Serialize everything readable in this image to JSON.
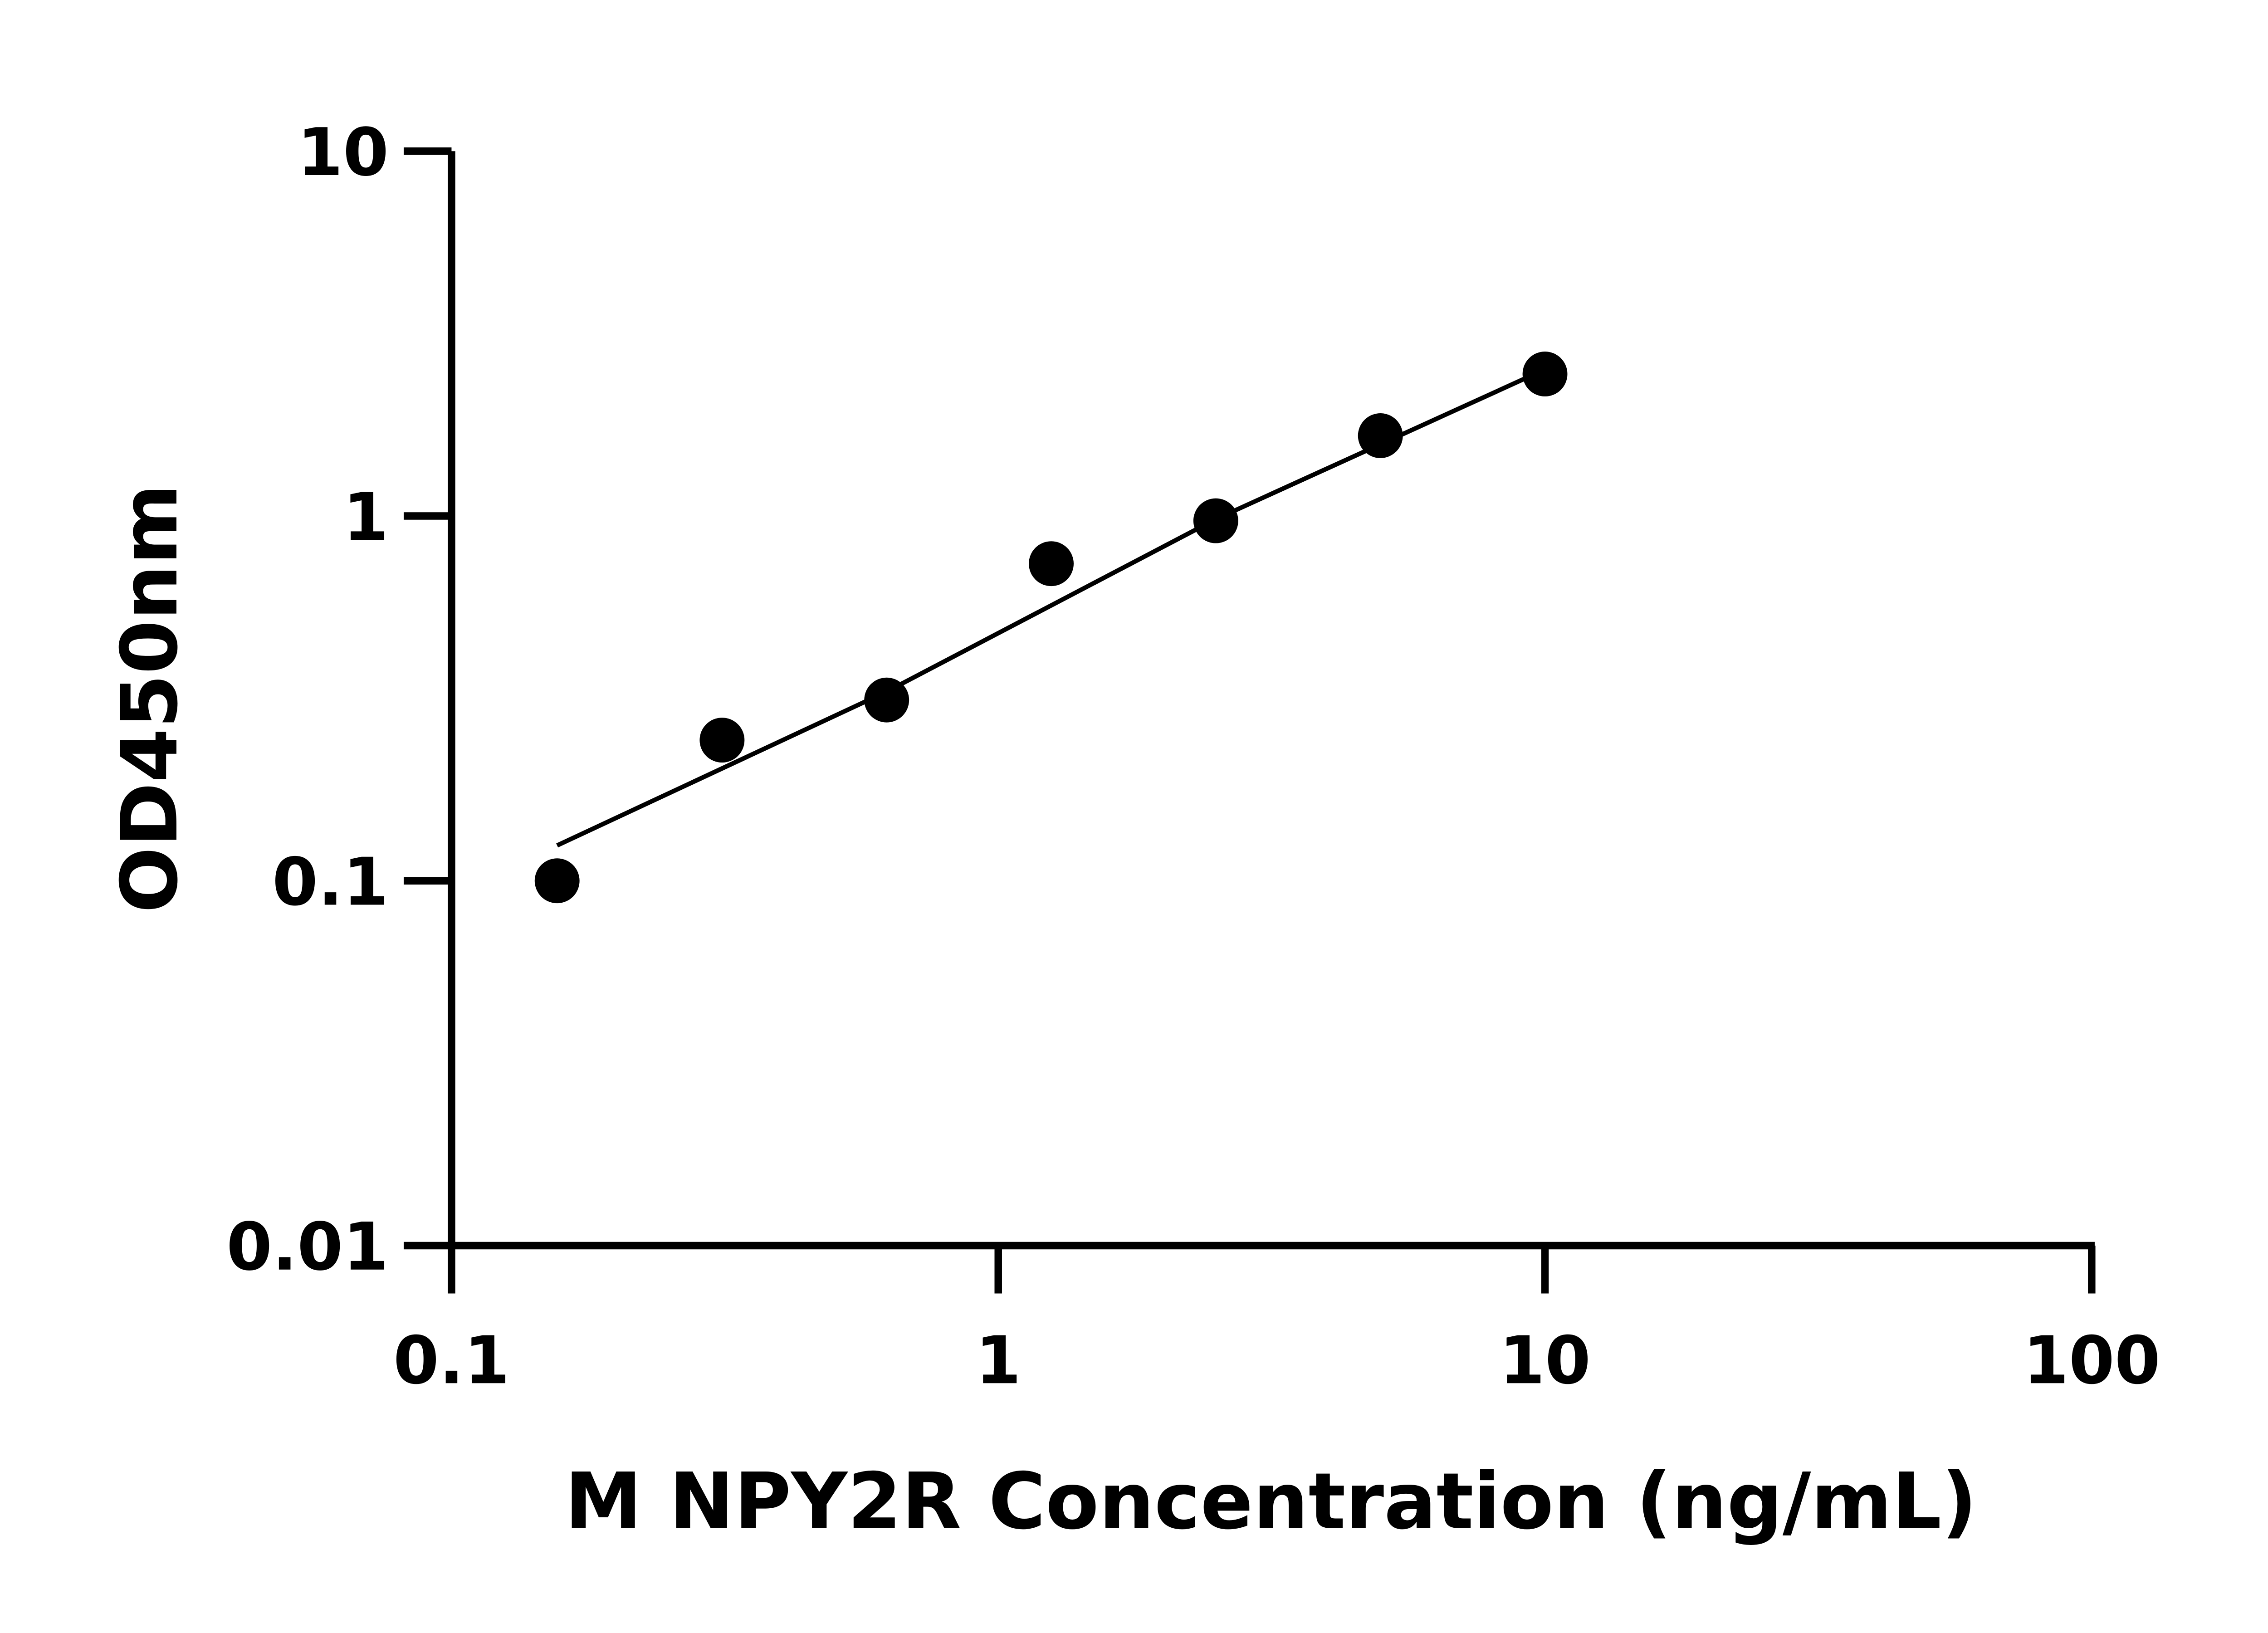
{
  "chart_data": {
    "type": "scatter",
    "title": "",
    "xlabel": "M NPY2R Concentration (ng/mL)",
    "ylabel": "OD450nm",
    "x_scale": "log",
    "y_scale": "log",
    "xlim": [
      0.1,
      100
    ],
    "ylim": [
      0.01,
      10
    ],
    "x_ticks": [
      "0.1",
      "1",
      "10",
      "100"
    ],
    "y_ticks": [
      "0.01",
      "0.1",
      "1",
      "10"
    ],
    "grid": false,
    "legend": "none",
    "points": [
      {
        "x": 0.156,
        "y": 0.1
      },
      {
        "x": 0.3125,
        "y": 0.243
      },
      {
        "x": 0.625,
        "y": 0.313
      },
      {
        "x": 1.25,
        "y": 0.74
      },
      {
        "x": 2.5,
        "y": 0.97
      },
      {
        "x": 5,
        "y": 1.66
      },
      {
        "x": 10,
        "y": 2.45
      }
    ],
    "fit_line": [
      {
        "x": 0.156,
        "y": 0.125
      },
      {
        "x": 0.625,
        "y": 0.33
      },
      {
        "x": 2.5,
        "y": 0.98
      },
      {
        "x": 9.3,
        "y": 2.4
      }
    ],
    "colors": {
      "points": "#000000",
      "line": "#000000",
      "axes": "#000000"
    }
  }
}
